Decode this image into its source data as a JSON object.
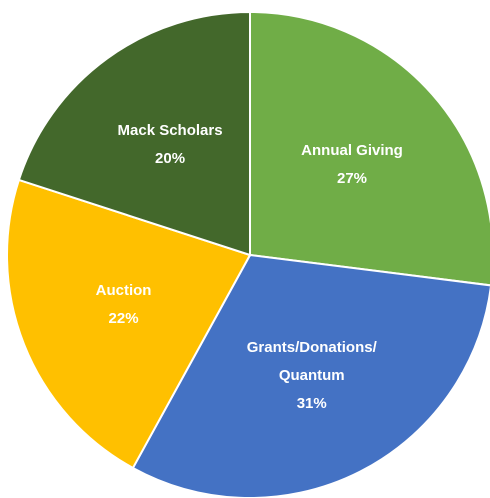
{
  "chart_data": {
    "type": "pie",
    "categories": [
      "Annual Giving",
      "Grants/Donations/Quantum",
      "Auction",
      "Mack Scholars"
    ],
    "values": [
      27,
      31,
      22,
      20
    ],
    "value_labels": [
      "27%",
      "31%",
      "22%",
      "20%"
    ],
    "colors": [
      "#70ad47",
      "#4472c4",
      "#ffc000",
      "#43682b"
    ]
  }
}
